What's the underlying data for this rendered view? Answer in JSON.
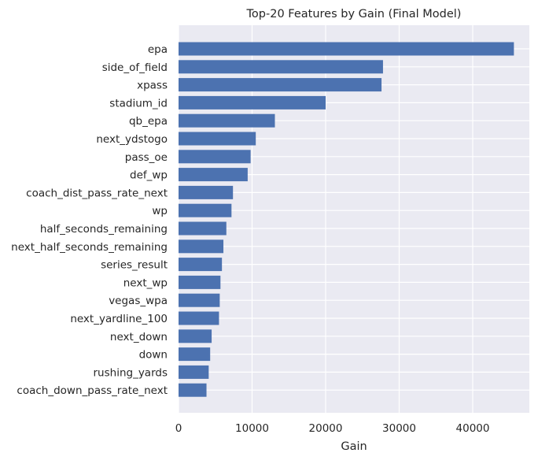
{
  "chart_data": {
    "type": "bar",
    "orientation": "horizontal",
    "title": "Top-20 Features by Gain (Final Model)",
    "xlabel": "Gain",
    "ylabel": "",
    "xlim": [
      0,
      47700
    ],
    "xticks": [
      0,
      10000,
      20000,
      30000,
      40000
    ],
    "grid": true,
    "colors": {
      "bar": "#4c72b0",
      "background": "#eaeaf2",
      "grid": "#ffffff"
    },
    "categories": [
      "epa",
      "side_of_field",
      "xpass",
      "stadium_id",
      "qb_epa",
      "next_ydstogo",
      "pass_oe",
      "def_wp",
      "coach_dist_pass_rate_next",
      "wp",
      "half_seconds_remaining",
      "next_half_seconds_remaining",
      "series_result",
      "next_wp",
      "vegas_wpa",
      "next_yardline_100",
      "next_down",
      "down",
      "rushing_yards",
      "coach_down_pass_rate_next"
    ],
    "values": [
      45600,
      27800,
      27600,
      20000,
      13100,
      10500,
      9800,
      9400,
      7400,
      7200,
      6500,
      6100,
      5900,
      5700,
      5600,
      5500,
      4500,
      4300,
      4100,
      3800
    ]
  }
}
